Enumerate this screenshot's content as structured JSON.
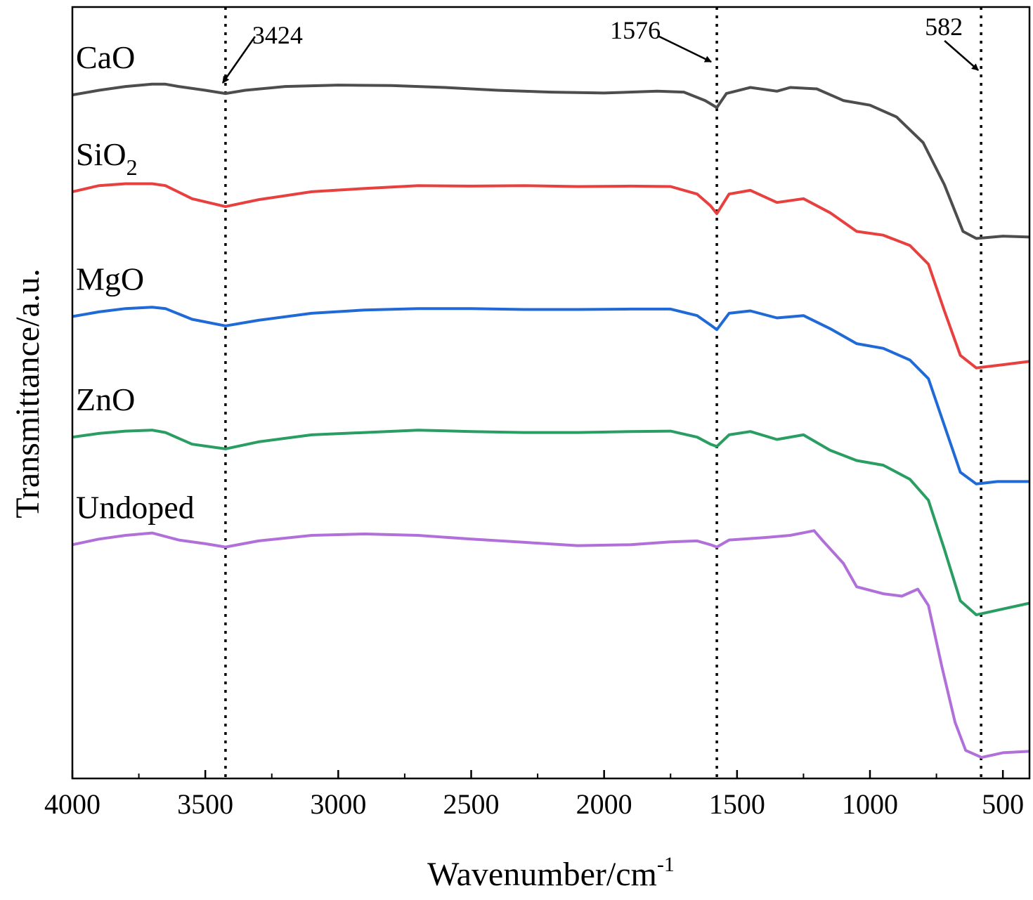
{
  "chart_data": {
    "type": "line",
    "title": "",
    "xlabel": "Wavenumber/cm",
    "xlabel_sup": "-1",
    "ylabel": "Transmittance/a.u.",
    "xlim": [
      4000,
      400
    ],
    "x_reversed": true,
    "x_ticks": [
      4000,
      3500,
      3000,
      2500,
      2000,
      1500,
      1000,
      500
    ],
    "y_ticks": [],
    "grid": false,
    "legend": "labels-above-curves",
    "annotations": [
      {
        "label": "3424",
        "x": 3424
      },
      {
        "label": "1576",
        "x": 1576
      },
      {
        "label": "582",
        "x": 582
      }
    ],
    "series": [
      {
        "name": "CaO",
        "name_sub": "",
        "color": "#4d4d4d",
        "points": [
          [
            4000,
            9.62
          ],
          [
            3900,
            9.72
          ],
          [
            3800,
            9.8
          ],
          [
            3700,
            9.85
          ],
          [
            3650,
            9.85
          ],
          [
            3600,
            9.8
          ],
          [
            3500,
            9.72
          ],
          [
            3424,
            9.65
          ],
          [
            3350,
            9.72
          ],
          [
            3200,
            9.8
          ],
          [
            3000,
            9.83
          ],
          [
            2800,
            9.82
          ],
          [
            2600,
            9.78
          ],
          [
            2400,
            9.72
          ],
          [
            2200,
            9.68
          ],
          [
            2000,
            9.66
          ],
          [
            1800,
            9.7
          ],
          [
            1700,
            9.68
          ],
          [
            1620,
            9.5
          ],
          [
            1576,
            9.35
          ],
          [
            1540,
            9.65
          ],
          [
            1450,
            9.78
          ],
          [
            1350,
            9.7
          ],
          [
            1300,
            9.78
          ],
          [
            1200,
            9.75
          ],
          [
            1100,
            9.5
          ],
          [
            1000,
            9.4
          ],
          [
            900,
            9.15
          ],
          [
            800,
            8.6
          ],
          [
            720,
            7.7
          ],
          [
            650,
            6.7
          ],
          [
            600,
            6.55
          ],
          [
            500,
            6.6
          ],
          [
            400,
            6.58
          ]
        ]
      },
      {
        "name": "SiO",
        "name_sub": "2",
        "color": "#e8403e",
        "points": [
          [
            4000,
            7.55
          ],
          [
            3900,
            7.68
          ],
          [
            3800,
            7.72
          ],
          [
            3700,
            7.72
          ],
          [
            3650,
            7.68
          ],
          [
            3550,
            7.4
          ],
          [
            3424,
            7.23
          ],
          [
            3300,
            7.38
          ],
          [
            3100,
            7.55
          ],
          [
            2900,
            7.62
          ],
          [
            2700,
            7.68
          ],
          [
            2500,
            7.67
          ],
          [
            2300,
            7.68
          ],
          [
            2100,
            7.66
          ],
          [
            1900,
            7.67
          ],
          [
            1750,
            7.66
          ],
          [
            1650,
            7.5
          ],
          [
            1600,
            7.25
          ],
          [
            1576,
            7.08
          ],
          [
            1530,
            7.5
          ],
          [
            1450,
            7.58
          ],
          [
            1350,
            7.32
          ],
          [
            1250,
            7.4
          ],
          [
            1150,
            7.1
          ],
          [
            1050,
            6.7
          ],
          [
            950,
            6.62
          ],
          [
            850,
            6.4
          ],
          [
            780,
            6.0
          ],
          [
            720,
            5.0
          ],
          [
            660,
            4.05
          ],
          [
            600,
            3.78
          ],
          [
            500,
            3.85
          ],
          [
            400,
            3.92
          ]
        ]
      },
      {
        "name": "MgO",
        "name_sub": "",
        "color": "#1f6ad6",
        "points": [
          [
            4000,
            4.88
          ],
          [
            3900,
            4.98
          ],
          [
            3800,
            5.05
          ],
          [
            3700,
            5.08
          ],
          [
            3650,
            5.05
          ],
          [
            3550,
            4.82
          ],
          [
            3424,
            4.68
          ],
          [
            3300,
            4.8
          ],
          [
            3100,
            4.95
          ],
          [
            2900,
            5.02
          ],
          [
            2700,
            5.05
          ],
          [
            2500,
            5.05
          ],
          [
            2300,
            5.03
          ],
          [
            2100,
            5.03
          ],
          [
            1900,
            5.04
          ],
          [
            1750,
            5.04
          ],
          [
            1650,
            4.9
          ],
          [
            1600,
            4.7
          ],
          [
            1576,
            4.6
          ],
          [
            1530,
            4.95
          ],
          [
            1450,
            5.0
          ],
          [
            1350,
            4.85
          ],
          [
            1250,
            4.9
          ],
          [
            1150,
            4.62
          ],
          [
            1050,
            4.3
          ],
          [
            950,
            4.2
          ],
          [
            850,
            3.95
          ],
          [
            780,
            3.55
          ],
          [
            720,
            2.55
          ],
          [
            660,
            1.55
          ],
          [
            600,
            1.3
          ],
          [
            520,
            1.35
          ],
          [
            400,
            1.35
          ]
        ]
      },
      {
        "name": "ZnO",
        "name_sub": "",
        "color": "#2a9e62",
        "points": [
          [
            4000,
            2.3
          ],
          [
            3900,
            2.38
          ],
          [
            3800,
            2.43
          ],
          [
            3700,
            2.45
          ],
          [
            3650,
            2.4
          ],
          [
            3550,
            2.15
          ],
          [
            3424,
            2.05
          ],
          [
            3300,
            2.2
          ],
          [
            3100,
            2.35
          ],
          [
            2900,
            2.4
          ],
          [
            2700,
            2.45
          ],
          [
            2500,
            2.42
          ],
          [
            2300,
            2.4
          ],
          [
            2100,
            2.4
          ],
          [
            1900,
            2.42
          ],
          [
            1750,
            2.43
          ],
          [
            1650,
            2.3
          ],
          [
            1600,
            2.15
          ],
          [
            1576,
            2.1
          ],
          [
            1530,
            2.35
          ],
          [
            1450,
            2.42
          ],
          [
            1350,
            2.25
          ],
          [
            1250,
            2.35
          ],
          [
            1150,
            2.02
          ],
          [
            1050,
            1.8
          ],
          [
            950,
            1.7
          ],
          [
            850,
            1.4
          ],
          [
            780,
            0.95
          ],
          [
            720,
            -0.1
          ],
          [
            660,
            -1.2
          ],
          [
            600,
            -1.5
          ],
          [
            520,
            -1.4
          ],
          [
            400,
            -1.25
          ]
        ]
      },
      {
        "name": "Undoped",
        "name_sub": "",
        "color": "#b170d9",
        "points": [
          [
            4000,
            0.0
          ],
          [
            3900,
            0.12
          ],
          [
            3800,
            0.2
          ],
          [
            3700,
            0.25
          ],
          [
            3600,
            0.1
          ],
          [
            3500,
            0.02
          ],
          [
            3424,
            -0.05
          ],
          [
            3300,
            0.08
          ],
          [
            3100,
            0.2
          ],
          [
            2900,
            0.23
          ],
          [
            2700,
            0.2
          ],
          [
            2500,
            0.12
          ],
          [
            2300,
            0.05
          ],
          [
            2100,
            -0.02
          ],
          [
            1900,
            0.0
          ],
          [
            1750,
            0.06
          ],
          [
            1650,
            0.08
          ],
          [
            1600,
            0.0
          ],
          [
            1576,
            -0.05
          ],
          [
            1530,
            0.1
          ],
          [
            1400,
            0.15
          ],
          [
            1300,
            0.2
          ],
          [
            1210,
            0.3
          ],
          [
            1180,
            0.1
          ],
          [
            1100,
            -0.4
          ],
          [
            1050,
            -0.9
          ],
          [
            950,
            -1.05
          ],
          [
            880,
            -1.1
          ],
          [
            820,
            -0.95
          ],
          [
            780,
            -1.3
          ],
          [
            730,
            -2.6
          ],
          [
            680,
            -3.8
          ],
          [
            640,
            -4.4
          ],
          [
            580,
            -4.55
          ],
          [
            500,
            -4.45
          ],
          [
            400,
            -4.42
          ]
        ]
      }
    ]
  }
}
